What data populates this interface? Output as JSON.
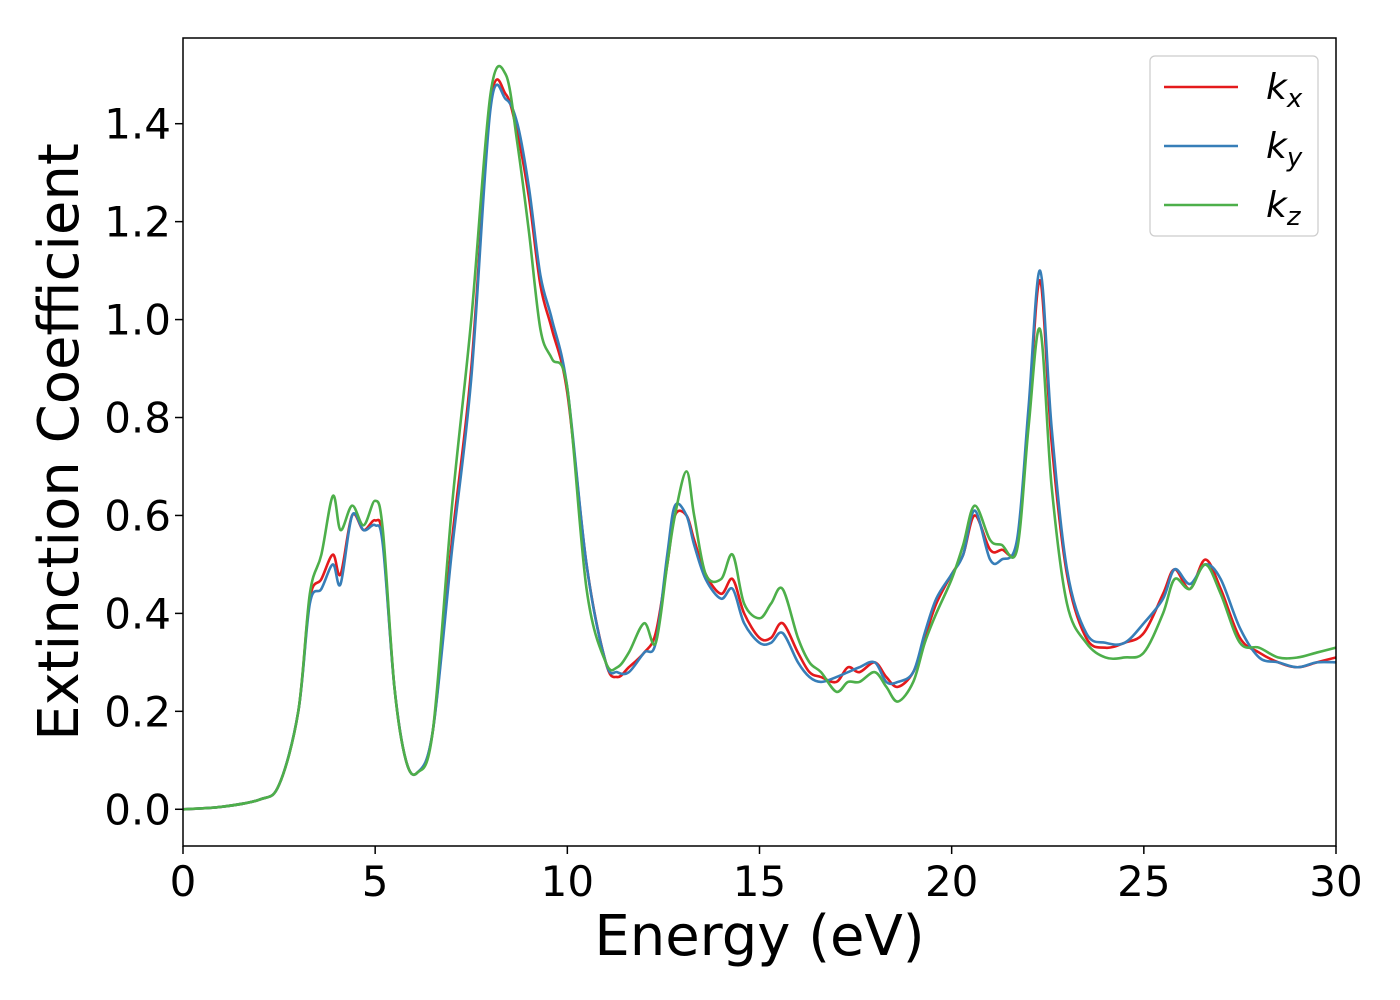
{
  "chart_data": {
    "type": "line",
    "title": "",
    "xlabel": "Energy (eV)",
    "ylabel": "Extinction Coefficient",
    "xlim": [
      0,
      30
    ],
    "ylim": [
      -0.075,
      1.575
    ],
    "xticks": [
      0,
      5,
      10,
      15,
      20,
      25,
      30
    ],
    "xtick_labels": [
      "0",
      "5",
      "10",
      "15",
      "20",
      "25",
      "30"
    ],
    "yticks": [
      0.0,
      0.2,
      0.4,
      0.6,
      0.8,
      1.0,
      1.2,
      1.4
    ],
    "ytick_labels": [
      "0.0",
      "0.2",
      "0.4",
      "0.6",
      "0.8",
      "1.0",
      "1.2",
      "1.4"
    ],
    "grid": false,
    "legend_position": "top-right",
    "series": [
      {
        "name": "k_x",
        "legend_base": "k",
        "legend_sub": "x",
        "color": "#e41a1c",
        "x": [
          0,
          1,
          2,
          2.5,
          3,
          3.3,
          3.6,
          3.9,
          4.1,
          4.4,
          4.7,
          5,
          5.2,
          5.5,
          5.8,
          6.1,
          6.5,
          7,
          7.5,
          8,
          8.4,
          8.7,
          9,
          9.3,
          9.6,
          10,
          10.5,
          11,
          11.3,
          11.6,
          12,
          12.3,
          12.6,
          12.8,
          13.1,
          13.3,
          13.6,
          14,
          14.3,
          14.6,
          15,
          15.3,
          15.6,
          16,
          16.3,
          16.6,
          17,
          17.3,
          17.6,
          18,
          18.3,
          18.6,
          19,
          19.3,
          19.6,
          20,
          20.3,
          20.6,
          21,
          21.3,
          21.7,
          22,
          22.3,
          22.6,
          23,
          23.5,
          24,
          24.5,
          25,
          25.5,
          25.8,
          26.2,
          26.6,
          27,
          27.5,
          28,
          28.5,
          29,
          29.5,
          30
        ],
        "y": [
          0,
          0.005,
          0.02,
          0.05,
          0.2,
          0.43,
          0.47,
          0.52,
          0.48,
          0.6,
          0.57,
          0.59,
          0.55,
          0.25,
          0.1,
          0.075,
          0.16,
          0.55,
          0.9,
          1.44,
          1.46,
          1.38,
          1.25,
          1.07,
          0.98,
          0.85,
          0.5,
          0.3,
          0.27,
          0.29,
          0.32,
          0.36,
          0.5,
          0.6,
          0.6,
          0.55,
          0.48,
          0.44,
          0.47,
          0.4,
          0.35,
          0.35,
          0.38,
          0.32,
          0.28,
          0.27,
          0.26,
          0.29,
          0.28,
          0.3,
          0.27,
          0.25,
          0.28,
          0.35,
          0.42,
          0.48,
          0.52,
          0.6,
          0.53,
          0.53,
          0.54,
          0.8,
          1.08,
          0.75,
          0.48,
          0.35,
          0.33,
          0.34,
          0.36,
          0.44,
          0.49,
          0.45,
          0.51,
          0.45,
          0.35,
          0.32,
          0.3,
          0.29,
          0.3,
          0.31
        ]
      },
      {
        "name": "k_y",
        "legend_base": "k",
        "legend_sub": "y",
        "color": "#377eb8",
        "x": [
          0,
          1,
          2,
          2.5,
          3,
          3.3,
          3.6,
          3.9,
          4.1,
          4.4,
          4.7,
          5,
          5.2,
          5.5,
          5.8,
          6.1,
          6.5,
          7,
          7.5,
          8,
          8.4,
          8.7,
          9,
          9.3,
          9.6,
          10,
          10.5,
          11,
          11.3,
          11.6,
          12,
          12.3,
          12.6,
          12.8,
          13.1,
          13.3,
          13.6,
          14,
          14.3,
          14.6,
          15,
          15.3,
          15.6,
          16,
          16.3,
          16.6,
          17,
          17.3,
          17.6,
          18,
          18.3,
          18.6,
          19,
          19.3,
          19.6,
          20,
          20.3,
          20.6,
          21,
          21.3,
          21.7,
          22,
          22.3,
          22.6,
          23,
          23.5,
          24,
          24.5,
          25,
          25.5,
          25.8,
          26.2,
          26.6,
          27,
          27.5,
          28,
          28.5,
          29,
          29.5,
          30
        ],
        "y": [
          0,
          0.005,
          0.02,
          0.05,
          0.2,
          0.42,
          0.45,
          0.5,
          0.46,
          0.6,
          0.57,
          0.58,
          0.54,
          0.25,
          0.1,
          0.075,
          0.16,
          0.53,
          0.88,
          1.43,
          1.45,
          1.4,
          1.27,
          1.09,
          1.0,
          0.86,
          0.5,
          0.3,
          0.28,
          0.28,
          0.32,
          0.34,
          0.52,
          0.62,
          0.6,
          0.54,
          0.47,
          0.43,
          0.45,
          0.38,
          0.34,
          0.34,
          0.36,
          0.3,
          0.27,
          0.26,
          0.27,
          0.28,
          0.29,
          0.3,
          0.26,
          0.26,
          0.28,
          0.36,
          0.43,
          0.48,
          0.52,
          0.61,
          0.51,
          0.51,
          0.55,
          0.82,
          1.1,
          0.78,
          0.49,
          0.36,
          0.34,
          0.34,
          0.38,
          0.43,
          0.49,
          0.46,
          0.5,
          0.47,
          0.37,
          0.31,
          0.3,
          0.29,
          0.3,
          0.3
        ]
      },
      {
        "name": "k_z",
        "legend_base": "k",
        "legend_sub": "z",
        "color": "#4daf4a",
        "x": [
          0,
          1,
          2,
          2.5,
          3,
          3.3,
          3.6,
          3.9,
          4.1,
          4.4,
          4.7,
          5,
          5.2,
          5.5,
          5.8,
          6.1,
          6.5,
          7,
          7.5,
          8,
          8.4,
          8.7,
          9,
          9.3,
          9.6,
          10,
          10.5,
          11,
          11.3,
          11.6,
          12,
          12.3,
          12.6,
          12.8,
          13.1,
          13.3,
          13.6,
          14,
          14.3,
          14.6,
          15,
          15.3,
          15.6,
          16,
          16.3,
          16.6,
          17,
          17.3,
          17.6,
          18,
          18.3,
          18.6,
          19,
          19.3,
          19.6,
          20,
          20.3,
          20.6,
          21,
          21.3,
          21.7,
          22,
          22.3,
          22.6,
          23,
          23.5,
          24,
          24.5,
          25,
          25.5,
          25.8,
          26.2,
          26.6,
          27,
          27.5,
          28,
          28.5,
          29,
          29.5,
          30
        ],
        "y": [
          0,
          0.005,
          0.02,
          0.05,
          0.2,
          0.44,
          0.52,
          0.64,
          0.57,
          0.62,
          0.58,
          0.63,
          0.57,
          0.25,
          0.1,
          0.075,
          0.16,
          0.62,
          1.0,
          1.46,
          1.5,
          1.36,
          1.18,
          0.98,
          0.92,
          0.86,
          0.45,
          0.3,
          0.29,
          0.32,
          0.38,
          0.34,
          0.5,
          0.6,
          0.69,
          0.6,
          0.48,
          0.47,
          0.52,
          0.42,
          0.39,
          0.42,
          0.45,
          0.35,
          0.3,
          0.28,
          0.24,
          0.26,
          0.26,
          0.28,
          0.25,
          0.22,
          0.26,
          0.34,
          0.4,
          0.47,
          0.54,
          0.62,
          0.55,
          0.54,
          0.53,
          0.78,
          0.98,
          0.66,
          0.42,
          0.34,
          0.31,
          0.31,
          0.32,
          0.4,
          0.47,
          0.45,
          0.5,
          0.44,
          0.34,
          0.33,
          0.31,
          0.31,
          0.32,
          0.33
        ]
      }
    ]
  }
}
